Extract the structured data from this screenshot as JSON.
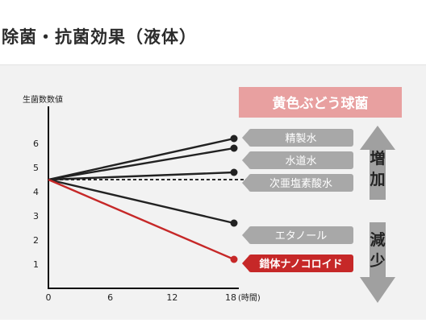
{
  "page": {
    "title": "除菌・抗菌効果（液体）"
  },
  "chart_data": {
    "type": "line",
    "title": "黄色ぶどう球菌",
    "ylabel": "生菌数数値",
    "xlabel": "(時間)",
    "x_ticks": [
      0,
      6,
      12,
      18
    ],
    "y_ticks": [
      1,
      2,
      3,
      4,
      5,
      6
    ],
    "xlim": [
      0,
      18
    ],
    "ylim": [
      0,
      6.9
    ],
    "baseline": {
      "value": 4.5,
      "style": "dashed"
    },
    "series": [
      {
        "name": "精製水",
        "x": [
          0,
          18
        ],
        "y": [
          4.5,
          6.2
        ],
        "color": "#222222"
      },
      {
        "name": "水道水",
        "x": [
          0,
          18
        ],
        "y": [
          4.5,
          5.8
        ],
        "color": "#222222"
      },
      {
        "name": "次亜塩素酸水",
        "x": [
          0,
          18
        ],
        "y": [
          4.5,
          4.8
        ],
        "color": "#222222"
      },
      {
        "name": "エタノール",
        "x": [
          0,
          18
        ],
        "y": [
          4.5,
          2.7
        ],
        "color": "#222222"
      },
      {
        "name": "錯体ナノコロイド",
        "x": [
          0,
          18
        ],
        "y": [
          4.5,
          1.2
        ],
        "color": "#c62828",
        "highlight": true
      }
    ],
    "indicators": {
      "increase": "増加",
      "decrease": "減少"
    },
    "colors": {
      "title_bg": "#e8a0a0",
      "label_bg": "#a8a8a8",
      "highlight_bg": "#c62828",
      "arrow": "#a0a0a0"
    }
  }
}
